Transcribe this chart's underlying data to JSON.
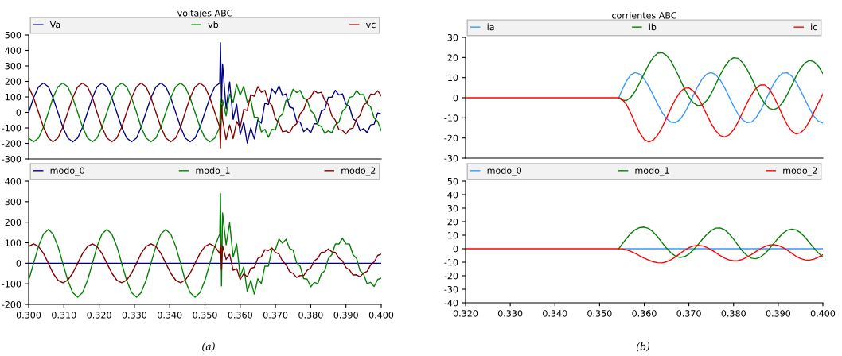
{
  "chart_data": [
    {
      "type": "line",
      "title": "voltajes ABC",
      "legend": "top",
      "tick_labels": "y",
      "xlim": [
        0.3,
        0.4
      ],
      "ylim": [
        -300,
        500
      ],
      "yticks": [
        -300,
        -200,
        -100,
        0,
        100,
        200,
        300,
        400,
        500
      ],
      "x": [
        0.3,
        0.3014,
        0.3028,
        0.3042,
        0.3056,
        0.3069,
        0.3083,
        0.3097,
        0.3111,
        0.3125,
        0.3139,
        0.3153,
        0.3167,
        0.3181,
        0.3194,
        0.3208,
        0.3222,
        0.3236,
        0.325,
        0.3264,
        0.3278,
        0.3292,
        0.3306,
        0.3319,
        0.3333,
        0.3347,
        0.3361,
        0.3375,
        0.3389,
        0.3403,
        0.3417,
        0.3431,
        0.3444,
        0.3458,
        0.3472,
        0.3486,
        0.35,
        0.3514,
        0.3528,
        0.3542,
        0.3544,
        0.3547,
        0.355,
        0.356,
        0.357,
        0.358,
        0.359,
        0.36,
        0.361,
        0.362,
        0.363,
        0.364,
        0.365,
        0.366,
        0.367,
        0.368,
        0.369,
        0.37,
        0.371,
        0.372,
        0.373,
        0.374,
        0.375,
        0.376,
        0.377,
        0.378,
        0.379,
        0.38,
        0.381,
        0.382,
        0.383,
        0.384,
        0.385,
        0.386,
        0.387,
        0.388,
        0.389,
        0.39,
        0.391,
        0.392,
        0.393,
        0.394,
        0.395,
        0.396,
        0.397,
        0.398,
        0.399,
        0.4
      ],
      "series": [
        {
          "name": "Va",
          "color": "#000080",
          "values": [
            0,
            95,
            165,
            190,
            165,
            95,
            0,
            -95,
            -165,
            -190,
            -165,
            -95,
            0,
            95,
            165,
            190,
            165,
            95,
            0,
            -95,
            -165,
            -190,
            -165,
            -95,
            0,
            95,
            165,
            190,
            165,
            95,
            0,
            -95,
            -165,
            -190,
            -165,
            -95,
            0,
            95,
            165,
            190,
            450,
            60,
            313,
            24,
            197,
            -45,
            53,
            -143,
            -63,
            -198,
            -100,
            -171,
            -47,
            -69,
            60,
            51,
            152,
            121,
            172,
            109,
            120,
            36,
            27,
            -57,
            -62,
            -125,
            -102,
            -132,
            -73,
            -73,
            8,
            20,
            98,
            98,
            143,
            112,
            120,
            54,
            37,
            -42,
            -57,
            -118,
            -104,
            -131,
            -80,
            -76,
            -3,
            -10
          ]
        },
        {
          "name": "vb",
          "color": "#008000",
          "values": [
            -165,
            -190,
            -165,
            -95,
            0,
            95,
            165,
            190,
            165,
            95,
            0,
            -95,
            -165,
            -190,
            -165,
            -95,
            0,
            95,
            165,
            190,
            165,
            95,
            0,
            -95,
            -165,
            -190,
            -165,
            -95,
            0,
            95,
            165,
            190,
            165,
            95,
            0,
            -95,
            -165,
            -190,
            -165,
            -95,
            90,
            -40,
            80,
            -22,
            118,
            65,
            181,
            112,
            169,
            68,
            82,
            -32,
            -32,
            -126,
            -109,
            -160,
            -109,
            -113,
            -31,
            -12,
            78,
            86,
            150,
            128,
            142,
            93,
            80,
            12,
            -11,
            -79,
            -90,
            -135,
            -118,
            -131,
            -80,
            -64,
            7,
            31,
            97,
            103,
            141,
            114,
            116,
            57,
            36,
            -36,
            -58,
            -117
          ]
        },
        {
          "name": "vc",
          "color": "#800000",
          "values": [
            165,
            95,
            0,
            -95,
            -165,
            -190,
            -165,
            -95,
            0,
            95,
            165,
            190,
            165,
            95,
            0,
            -95,
            -165,
            -190,
            -165,
            -95,
            0,
            95,
            165,
            190,
            165,
            95,
            0,
            -95,
            -165,
            -190,
            -165,
            -95,
            0,
            95,
            165,
            190,
            165,
            95,
            0,
            -95,
            -230,
            50,
            -45,
            -175,
            -80,
            -169,
            -59,
            -95,
            19,
            13,
            114,
            104,
            167,
            130,
            142,
            70,
            45,
            -41,
            -68,
            -125,
            -120,
            -133,
            -90,
            -74,
            -9,
            18,
            83,
            98,
            140,
            125,
            130,
            79,
            52,
            -21,
            -51,
            -111,
            -115,
            -139,
            -107,
            -101,
            -43,
            -19,
            46,
            67,
            118,
            116,
            140,
            108
          ]
        }
      ]
    },
    {
      "type": "line",
      "legend": "top",
      "xlim": [
        0.3,
        0.4
      ],
      "ylim": [
        -200,
        400
      ],
      "yticks": [
        -200,
        -100,
        0,
        100,
        200,
        300,
        400
      ],
      "xticks": [
        {
          "value": 0.3,
          "label": "0.300"
        },
        {
          "value": 0.31,
          "label": "0.310"
        },
        {
          "value": 0.32,
          "label": "0.320"
        },
        {
          "value": 0.33,
          "label": "0.330"
        },
        {
          "value": 0.34,
          "label": "0.340"
        },
        {
          "value": 0.35,
          "label": "0.350"
        },
        {
          "value": 0.36,
          "label": "0.360"
        },
        {
          "value": 0.37,
          "label": "0.370"
        },
        {
          "value": 0.38,
          "label": "0.380"
        },
        {
          "value": 0.39,
          "label": "0.390"
        },
        {
          "value": 0.4,
          "label": "0.400"
        }
      ],
      "x": [
        0.3,
        0.3014,
        0.3028,
        0.3042,
        0.3056,
        0.3069,
        0.3083,
        0.3097,
        0.3111,
        0.3125,
        0.3139,
        0.3153,
        0.3167,
        0.3181,
        0.3194,
        0.3208,
        0.3222,
        0.3236,
        0.325,
        0.3264,
        0.3278,
        0.3292,
        0.3306,
        0.3319,
        0.3333,
        0.3347,
        0.3361,
        0.3375,
        0.3389,
        0.3403,
        0.3417,
        0.3431,
        0.3444,
        0.3458,
        0.3472,
        0.3486,
        0.35,
        0.3514,
        0.3528,
        0.3542,
        0.3544,
        0.3547,
        0.355,
        0.356,
        0.357,
        0.358,
        0.359,
        0.36,
        0.361,
        0.362,
        0.363,
        0.364,
        0.365,
        0.366,
        0.367,
        0.368,
        0.369,
        0.37,
        0.371,
        0.372,
        0.373,
        0.374,
        0.375,
        0.376,
        0.377,
        0.378,
        0.379,
        0.38,
        0.381,
        0.382,
        0.383,
        0.384,
        0.385,
        0.386,
        0.387,
        0.388,
        0.389,
        0.39,
        0.391,
        0.392,
        0.393,
        0.394,
        0.395,
        0.396,
        0.397,
        0.398,
        0.399,
        0.4
      ],
      "series": [
        {
          "name": "modo_0",
          "color": "#000080",
          "values": [
            0,
            0,
            0,
            0,
            0,
            0,
            0,
            0,
            0,
            0,
            0,
            0,
            0,
            0,
            0,
            0,
            0,
            0,
            0,
            0,
            0,
            0,
            0,
            0,
            0,
            0,
            0,
            0,
            0,
            0,
            0,
            0,
            0,
            0,
            0,
            0,
            0,
            0,
            0,
            0,
            0,
            0,
            0,
            0,
            0,
            0,
            0,
            0,
            0,
            0,
            0,
            0,
            0,
            0,
            0,
            0,
            0,
            0,
            0,
            0,
            0,
            0,
            0,
            0,
            0,
            0,
            0,
            0,
            0,
            0,
            0,
            0,
            0,
            0,
            0,
            0,
            0,
            0,
            0,
            0,
            0,
            0,
            0,
            0,
            0,
            0,
            0,
            0
          ]
        },
        {
          "name": "modo_1",
          "color": "#008000",
          "values": [
            -83,
            0,
            83,
            143,
            165,
            143,
            83,
            0,
            -83,
            -143,
            -165,
            -143,
            -83,
            0,
            83,
            143,
            165,
            143,
            83,
            0,
            -83,
            -143,
            -165,
            -143,
            -83,
            0,
            83,
            143,
            165,
            143,
            83,
            0,
            -83,
            -143,
            -165,
            -143,
            -83,
            0,
            83,
            143,
            340,
            -110,
            245,
            90,
            197,
            30,
            94,
            -64,
            -17,
            -138,
            -83,
            -150,
            -75,
            -99,
            -14,
            -14,
            66,
            66,
            119,
            98,
            117,
            72,
            64,
            2,
            -14,
            -74,
            -77,
            -115,
            -93,
            -99,
            -52,
            -36,
            23,
            42,
            94,
            94,
            122,
            95,
            94,
            42,
            24,
            -36,
            -52,
            -99,
            -93,
            -113,
            -79,
            -72
          ]
        },
        {
          "name": "modo_2",
          "color": "#800000",
          "values": [
            82,
            95,
            82,
            48,
            0,
            -48,
            -82,
            -95,
            -82,
            -48,
            0,
            48,
            82,
            95,
            82,
            48,
            0,
            -48,
            -82,
            -95,
            -82,
            -48,
            0,
            48,
            82,
            95,
            82,
            48,
            0,
            -48,
            -82,
            -95,
            -82,
            -48,
            0,
            48,
            82,
            95,
            82,
            48,
            90,
            -30,
            85,
            18,
            44,
            -34,
            -26,
            -79,
            -50,
            -66,
            -25,
            -20,
            24,
            32,
            66,
            62,
            75,
            53,
            45,
            11,
            -6,
            -40,
            -49,
            -69,
            -59,
            -60,
            -34,
            -23,
            11,
            24,
            53,
            55,
            70,
            56,
            53,
            25,
            12,
            -21,
            -32,
            -57,
            -56,
            -66,
            -47,
            -40,
            -8,
            6,
            38,
            45
          ]
        }
      ]
    },
    {
      "type": "line",
      "title": "corrientes ABC",
      "legend": "top",
      "tick_labels": "y",
      "xlim": [
        0.32,
        0.4
      ],
      "ylim": [
        -30,
        30
      ],
      "yticks": [
        -30,
        -20,
        -10,
        0,
        10,
        20,
        30
      ],
      "x": [
        0.32,
        0.3543,
        0.355,
        0.356,
        0.357,
        0.358,
        0.359,
        0.36,
        0.361,
        0.362,
        0.363,
        0.364,
        0.365,
        0.366,
        0.367,
        0.368,
        0.369,
        0.37,
        0.371,
        0.372,
        0.373,
        0.374,
        0.375,
        0.376,
        0.377,
        0.378,
        0.379,
        0.38,
        0.381,
        0.382,
        0.383,
        0.384,
        0.385,
        0.386,
        0.387,
        0.388,
        0.389,
        0.39,
        0.391,
        0.392,
        0.393,
        0.394,
        0.395,
        0.396,
        0.397,
        0.398,
        0.399,
        0.4
      ],
      "series": [
        {
          "name": "ia",
          "color": "#3399ff",
          "values": [
            null,
            0,
            3.7,
            8.3,
            11.4,
            12.5,
            11.7,
            9.3,
            5.7,
            1.4,
            -3.1,
            -7.3,
            -10.4,
            -12.2,
            -12.4,
            -10.8,
            -7.7,
            -3.5,
            1.2,
            5.7,
            9.4,
            11.8,
            12.5,
            11.5,
            8.8,
            5,
            0.5,
            -4.2,
            -8.2,
            -11,
            -12.4,
            -12.1,
            -10,
            -6.5,
            -2.1,
            2.6,
            7,
            10.3,
            12.2,
            12.4,
            10.8,
            7.8,
            3.6,
            -0.9,
            -5.4,
            -9.2,
            -11.7,
            -12.5
          ]
        },
        {
          "name": "ib",
          "color": "#008000",
          "values": [
            null,
            0,
            -1.2,
            -1.4,
            0.2,
            3.3,
            7.5,
            12.1,
            16.5,
            20,
            22.1,
            22.4,
            21,
            18.1,
            14,
            9.3,
            4.5,
            0.4,
            -2.5,
            -3.9,
            -3.5,
            -1.4,
            2,
            6.6,
            11.3,
            15.4,
            18.4,
            19.9,
            19.6,
            17.5,
            14.2,
            9.9,
            5.1,
            0.5,
            -3,
            -5.3,
            -6,
            -4.9,
            -2.3,
            1.5,
            6,
            10.7,
            14.6,
            17.3,
            18.5,
            17.9,
            15.7,
            12
          ]
        },
        {
          "name": "ic",
          "color": "#ff0000",
          "values": [
            0,
            0,
            -0.6,
            -3.3,
            -7.7,
            -12.8,
            -17.5,
            -20.8,
            -22,
            -21.1,
            -18.6,
            -14.7,
            -10,
            -5.1,
            -0.7,
            2.7,
            4.7,
            4.9,
            3.3,
            0.3,
            -3.8,
            -8.4,
            -12.9,
            -16.4,
            -18.8,
            -19.5,
            -18.5,
            -15.9,
            -12.1,
            -7.4,
            -2.7,
            1.4,
            4.7,
            6.3,
            6.3,
            4.3,
            0.6,
            -4,
            -9,
            -13.4,
            -16.5,
            -18,
            -17.4,
            -15.3,
            -11.6,
            -7.1,
            -2.5,
            1.8
          ]
        }
      ]
    },
    {
      "type": "line",
      "legend": "top",
      "xlim": [
        0.32,
        0.4
      ],
      "ylim": [
        -40,
        50
      ],
      "x": [
        0.32,
        0.3543,
        0.355,
        0.356,
        0.357,
        0.358,
        0.359,
        0.36,
        0.361,
        0.362,
        0.363,
        0.364,
        0.365,
        0.366,
        0.367,
        0.368,
        0.369,
        0.37,
        0.371,
        0.372,
        0.373,
        0.374,
        0.375,
        0.376,
        0.377,
        0.378,
        0.379,
        0.38,
        0.381,
        0.382,
        0.383,
        0.384,
        0.385,
        0.386,
        0.387,
        0.388,
        0.389,
        0.39,
        0.391,
        0.392,
        0.393,
        0.394,
        0.395,
        0.396,
        0.397,
        0.398,
        0.399,
        0.4
      ],
      "yticks": [
        -40,
        -30,
        -20,
        -10,
        0,
        10,
        20,
        30,
        40,
        50
      ],
      "xticks": [
        {
          "value": 0.32,
          "label": "0.320"
        },
        {
          "value": 0.33,
          "label": "0.330"
        },
        {
          "value": 0.34,
          "label": "0.340"
        },
        {
          "value": 0.35,
          "label": "0.350"
        },
        {
          "value": 0.36,
          "label": "0.360"
        },
        {
          "value": 0.37,
          "label": "0.370"
        },
        {
          "value": 0.38,
          "label": "0.380"
        },
        {
          "value": 0.39,
          "label": "0.390"
        },
        {
          "value": 0.4,
          "label": "0.400"
        }
      ],
      "series": [
        {
          "name": "modo_0",
          "color": "#3399ff",
          "values": [
            null,
            null,
            0,
            0,
            0,
            0,
            0,
            0,
            0,
            0,
            0,
            0,
            0,
            0,
            0,
            0,
            0,
            0,
            0,
            0,
            0,
            0,
            0,
            0,
            0,
            0,
            0,
            0,
            0,
            0,
            0,
            0,
            0,
            0,
            0,
            0,
            0,
            0,
            0,
            0,
            0,
            0,
            0,
            0,
            0,
            0,
            0,
            0
          ]
        },
        {
          "name": "modo_1",
          "color": "#008000",
          "values": [
            null,
            0,
            3.2,
            7.5,
            11.4,
            14.1,
            15.6,
            16,
            14.9,
            12.4,
            8.8,
            4.5,
            0.4,
            -3.1,
            -5.5,
            -6.5,
            -5.9,
            -4,
            -0.9,
            2.9,
            6.9,
            10.6,
            13.4,
            15.2,
            15.4,
            14,
            11.1,
            7.1,
            2.6,
            -1.8,
            -5,
            -7,
            -7.4,
            -6.2,
            -3.7,
            -0.1,
            3.9,
            7.8,
            11.3,
            13.6,
            14.5,
            13.9,
            11.8,
            8.5,
            4.5,
            0.4,
            -3.2,
            -6.1
          ]
        },
        {
          "name": "modo_2",
          "color": "#ff0000",
          "values": [
            0,
            0,
            -0.1,
            -0.8,
            -2,
            -3.5,
            -5.3,
            -7,
            -8.5,
            -9.7,
            -10.4,
            -10.5,
            -9.7,
            -8.2,
            -6.1,
            -3.6,
            -1.2,
            0.8,
            2,
            2.5,
            2.1,
            0.9,
            -0.8,
            -2.9,
            -5.1,
            -7,
            -8.3,
            -9,
            -8.8,
            -7.9,
            -6.3,
            -4.3,
            -2.1,
            0,
            1.6,
            2.7,
            3,
            2.4,
            1,
            -1,
            -3.3,
            -5.6,
            -7.3,
            -8.3,
            -8.5,
            -7.7,
            -6.3,
            -4.4
          ]
        }
      ],
      "annotations": [
        "(a)",
        "(b)"
      ]
    }
  ]
}
